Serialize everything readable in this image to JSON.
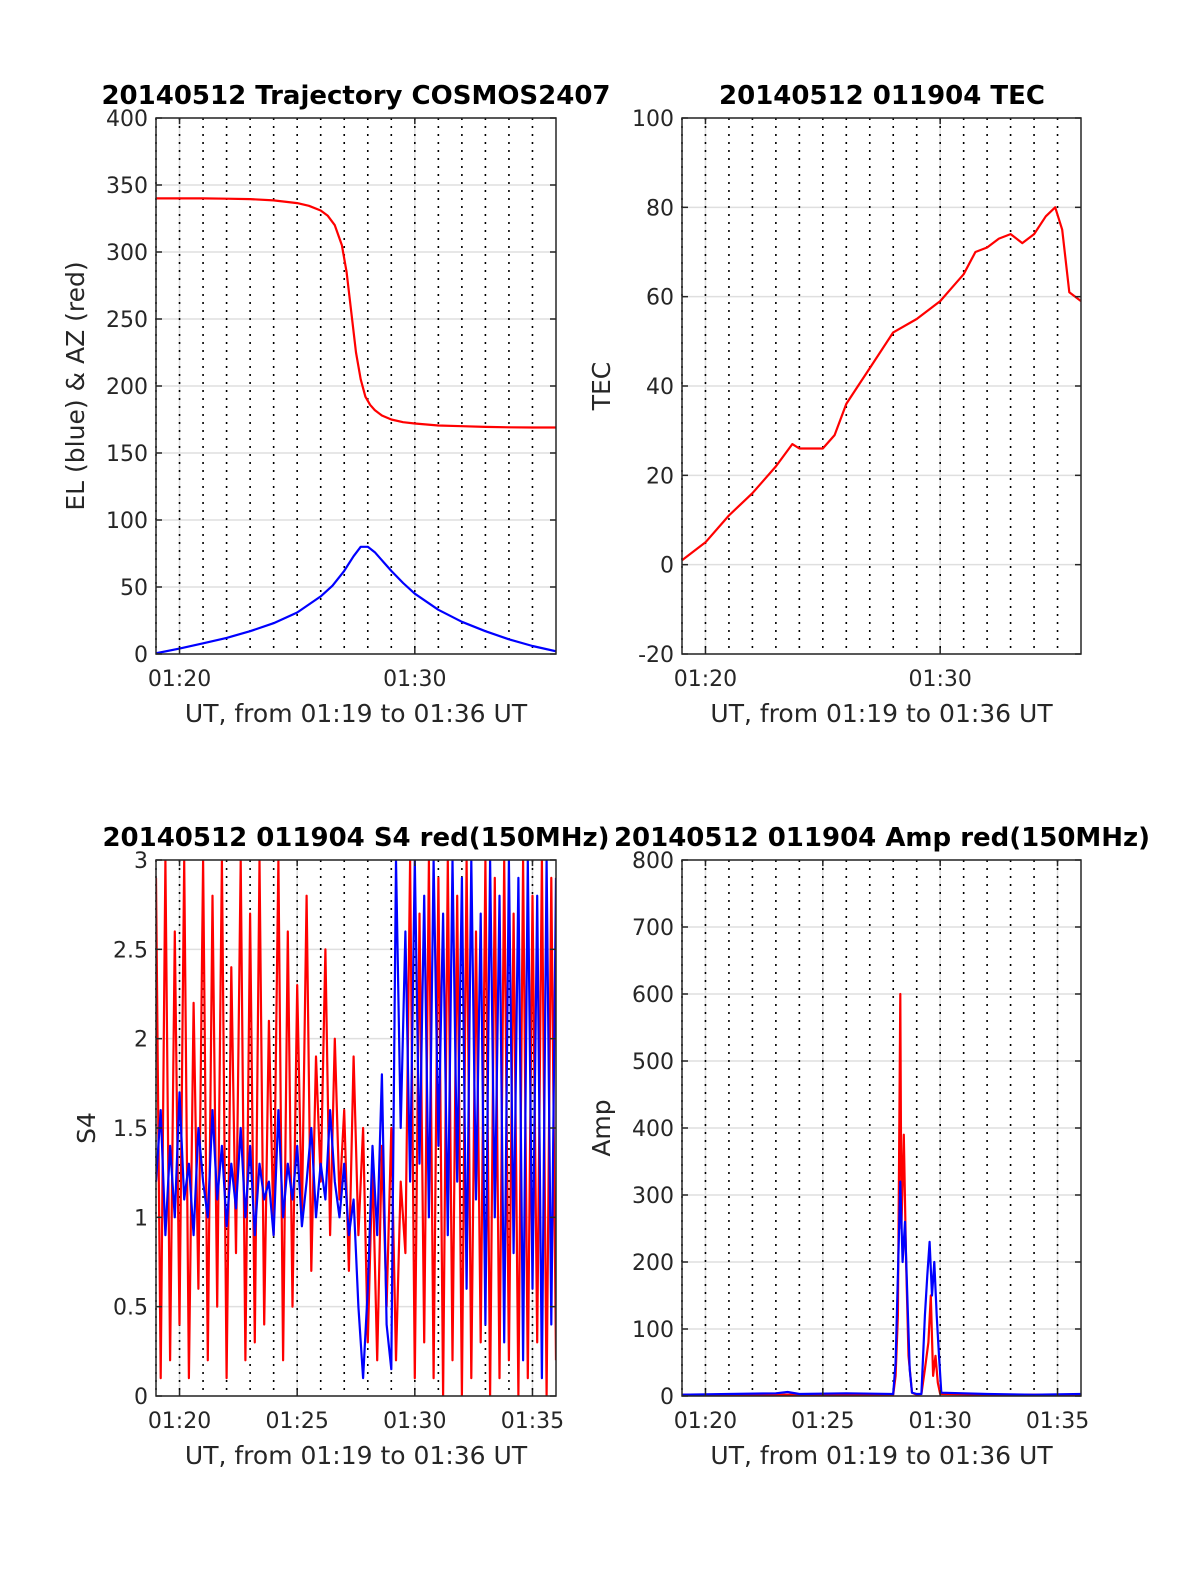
{
  "chart_data": [
    {
      "type": "line",
      "title": "20140512 Trajectory COSMOS2407",
      "xlabel": "UT, from 01:19 to 01:36 UT",
      "ylabel": "EL (blue) & AZ (red)",
      "xlim": [
        79.0,
        96.0
      ],
      "ylim": [
        0,
        400
      ],
      "yticks": [
        0,
        50,
        100,
        150,
        200,
        250,
        300,
        350,
        400
      ],
      "xticks": [
        {
          "v": 80,
          "label": "01:20"
        },
        {
          "v": 90,
          "label": "01:30"
        }
      ],
      "grid": "on",
      "series": [
        {
          "color": "#ff0000",
          "x": [
            79.0,
            80.0,
            81.0,
            82.0,
            83.0,
            84.0,
            85.0,
            85.5,
            86.0,
            86.3,
            86.6,
            86.9,
            87.1,
            87.3,
            87.5,
            87.7,
            87.9,
            88.1,
            88.3,
            88.6,
            89.0,
            89.5,
            90.0,
            91.0,
            92.0,
            93.0,
            94.0,
            95.0,
            96.0
          ],
          "y": [
            340,
            340,
            340,
            339.8,
            339.5,
            338.5,
            336.5,
            334.5,
            331,
            327,
            320,
            305,
            285,
            255,
            225,
            205,
            192,
            186,
            182,
            178,
            175,
            173,
            172,
            170.5,
            170,
            169.5,
            169.2,
            169,
            169
          ]
        },
        {
          "color": "#0000ff",
          "x": [
            79.0,
            80.0,
            81.0,
            82.0,
            83.0,
            84.0,
            85.0,
            86.0,
            86.5,
            87.0,
            87.4,
            87.7,
            88.0,
            88.3,
            88.7,
            89.0,
            89.5,
            90.0,
            91.0,
            92.0,
            93.0,
            94.0,
            95.0,
            96.0
          ],
          "y": [
            0.5,
            4,
            8,
            12,
            17,
            23,
            31,
            43,
            51,
            62,
            73,
            80,
            80,
            76,
            68,
            62,
            53,
            45,
            33,
            24,
            17,
            11,
            6,
            2
          ]
        }
      ]
    },
    {
      "type": "line",
      "title": "20140512 011904 TEC",
      "xlabel": "UT, from 01:19 to 01:36 UT",
      "ylabel": "TEC",
      "xlim": [
        79.0,
        96.0
      ],
      "ylim": [
        -20,
        100
      ],
      "yticks": [
        -20,
        0,
        20,
        40,
        60,
        80,
        100
      ],
      "xticks": [
        {
          "v": 80,
          "label": "01:20"
        },
        {
          "v": 90,
          "label": "01:30"
        }
      ],
      "grid": "on",
      "series": [
        {
          "color": "#ff0000",
          "x": [
            79.0,
            80.0,
            81.0,
            82.0,
            83.0,
            83.7,
            84.0,
            85.0,
            85.5,
            86.0,
            86.5,
            87.0,
            88.0,
            89.0,
            90.0,
            90.5,
            91.0,
            91.5,
            92.0,
            92.5,
            93.0,
            93.5,
            94.0,
            94.5,
            94.9,
            95.2,
            95.5,
            96.0
          ],
          "y": [
            1,
            5,
            11,
            16,
            22,
            27,
            26,
            26,
            29,
            36,
            40,
            44,
            52,
            55,
            59,
            62,
            65,
            70,
            71,
            73,
            74,
            72,
            74,
            78,
            80,
            75,
            61,
            59
          ]
        }
      ]
    },
    {
      "type": "line",
      "title": "20140512 011904 S4 red(150MHz)",
      "xlabel": "UT, from 01:19 to 01:36 UT",
      "ylabel": "S4",
      "xlim": [
        79.0,
        96.0
      ],
      "ylim": [
        0,
        3
      ],
      "yticks": [
        0,
        0.5,
        1,
        1.5,
        2,
        2.5,
        3
      ],
      "xticks": [
        {
          "v": 80,
          "label": "01:20"
        },
        {
          "v": 85,
          "label": "01:25"
        },
        {
          "v": 90,
          "label": "01:30"
        },
        {
          "v": 95,
          "label": "01:35"
        }
      ],
      "grid": "on",
      "series": [
        {
          "color": "#ff0000",
          "x": [
            79.0,
            79.2,
            79.4,
            79.6,
            79.8,
            80.0,
            80.2,
            80.4,
            80.6,
            80.8,
            81.0,
            81.2,
            81.4,
            81.6,
            81.8,
            82.0,
            82.2,
            82.4,
            82.6,
            82.8,
            83.0,
            83.2,
            83.4,
            83.6,
            83.8,
            84.0,
            84.2,
            84.4,
            84.6,
            84.8,
            85.0,
            85.2,
            85.4,
            85.6,
            85.8,
            86.0,
            86.2,
            86.4,
            86.6,
            86.8,
            87.0,
            87.2,
            87.4,
            87.6,
            87.8,
            88.0,
            88.2,
            88.4,
            88.6,
            88.8,
            89.0,
            89.2,
            89.4,
            89.6,
            89.8,
            90.0,
            90.2,
            90.4,
            90.6,
            90.8,
            91.0,
            91.2,
            91.4,
            91.6,
            91.8,
            92.0,
            92.2,
            92.4,
            92.6,
            92.8,
            93.0,
            93.2,
            93.4,
            93.6,
            93.8,
            94.0,
            94.2,
            94.4,
            94.6,
            94.8,
            95.0,
            95.2,
            95.4,
            95.6,
            95.8,
            96.0
          ],
          "y": [
            2.9,
            0.1,
            3,
            0.2,
            2.6,
            0.4,
            3,
            0.1,
            2.2,
            0.6,
            3,
            0.2,
            2.8,
            0.5,
            3,
            0.1,
            2.4,
            0.8,
            3,
            0.2,
            2.7,
            0.3,
            3,
            0.4,
            2.1,
            0.9,
            3,
            0.2,
            2.6,
            0.5,
            2.3,
            1.0,
            2.8,
            0.7,
            1.9,
            1.2,
            2.5,
            0.9,
            2.0,
            1.1,
            1.6,
            0.7,
            1.9,
            0.9,
            1.5,
            0.3,
            1.3,
            0.2,
            1.4,
            0.5,
            1.5,
            0.2,
            1.2,
            0.8,
            3,
            0.1,
            2.7,
            0.3,
            3,
            0.1,
            2.9,
            0,
            3,
            0.2,
            2.8,
            0,
            3,
            0.1,
            2.6,
            0.3,
            3,
            0,
            2.9,
            0.1,
            3,
            0.2,
            2.7,
            0,
            3,
            0.1,
            2.8,
            0.3,
            3,
            0,
            2.9,
            0.2
          ]
        },
        {
          "color": "#0000ff",
          "x": [
            79.0,
            79.2,
            79.4,
            79.6,
            79.8,
            80.0,
            80.2,
            80.4,
            80.6,
            80.8,
            81.0,
            81.2,
            81.4,
            81.6,
            81.8,
            82.0,
            82.2,
            82.4,
            82.6,
            82.8,
            83.0,
            83.2,
            83.4,
            83.6,
            83.8,
            84.0,
            84.2,
            84.4,
            84.6,
            84.8,
            85.0,
            85.2,
            85.4,
            85.6,
            85.8,
            86.0,
            86.2,
            86.4,
            86.6,
            86.8,
            87.0,
            87.2,
            87.4,
            87.6,
            87.8,
            88.0,
            88.2,
            88.4,
            88.6,
            88.8,
            89.0,
            89.2,
            89.4,
            89.6,
            89.8,
            90.0,
            90.2,
            90.4,
            90.6,
            90.8,
            91.0,
            91.2,
            91.4,
            91.6,
            91.8,
            92.0,
            92.2,
            92.4,
            92.6,
            92.8,
            93.0,
            93.2,
            93.4,
            93.6,
            93.8,
            94.0,
            94.2,
            94.4,
            94.6,
            94.8,
            95.0,
            95.2,
            95.4,
            95.6,
            95.8,
            96.0
          ],
          "y": [
            1.2,
            1.6,
            0.9,
            1.4,
            1.0,
            1.7,
            1.1,
            1.3,
            0.9,
            1.5,
            1.2,
            1.0,
            1.6,
            1.1,
            1.4,
            0.95,
            1.3,
            1.05,
            1.5,
            1.0,
            1.4,
            0.9,
            1.3,
            1.1,
            1.2,
            0.9,
            1.6,
            1.0,
            1.3,
            1.1,
            1.4,
            0.95,
            1.2,
            1.5,
            1.0,
            1.3,
            1.1,
            1.6,
            1.2,
            1.0,
            1.3,
            0.9,
            1.1,
            0.5,
            0.1,
            0.6,
            1.4,
            0.9,
            1.8,
            0.4,
            0.15,
            3,
            1.5,
            2.6,
            1.2,
            3,
            1.3,
            2.8,
            1.0,
            3,
            1.4,
            2.7,
            0.9,
            3,
            1.2,
            2.9,
            0.6,
            3,
            1.1,
            2.7,
            0.4,
            3,
            1.0,
            2.8,
            0.3,
            3,
            0.8,
            2.9,
            0.2,
            3,
            0.6,
            2.8,
            0.1,
            3,
            0.4,
            2.9
          ]
        }
      ]
    },
    {
      "type": "line",
      "title": "20140512 011904 Amp red(150MHz)",
      "xlabel": "UT, from 01:19 to 01:36 UT",
      "ylabel": "Amp",
      "xlim": [
        79.0,
        96.0
      ],
      "ylim": [
        0,
        800
      ],
      "yticks": [
        0,
        100,
        200,
        300,
        400,
        500,
        600,
        700,
        800
      ],
      "xticks": [
        {
          "v": 80,
          "label": "01:20"
        },
        {
          "v": 85,
          "label": "01:25"
        },
        {
          "v": 90,
          "label": "01:30"
        },
        {
          "v": 95,
          "label": "01:35"
        }
      ],
      "grid": "on",
      "series": [
        {
          "color": "#ff0000",
          "x": [
            79.0,
            84.0,
            88.0,
            88.1,
            88.2,
            88.3,
            88.35,
            88.45,
            88.55,
            88.65,
            88.8,
            89.0,
            89.2,
            89.35,
            89.5,
            89.6,
            89.7,
            89.8,
            89.9,
            90.0,
            92.0,
            96.0
          ],
          "y": [
            2,
            2,
            2,
            30,
            120,
            600,
            250,
            390,
            200,
            60,
            5,
            2,
            3,
            40,
            80,
            150,
            30,
            60,
            20,
            3,
            2,
            2
          ]
        },
        {
          "color": "#0000ff",
          "x": [
            79.0,
            81.0,
            83.0,
            83.5,
            84.0,
            86.0,
            88.0,
            88.1,
            88.2,
            88.3,
            88.4,
            88.5,
            88.6,
            88.7,
            88.8,
            89.0,
            89.2,
            89.35,
            89.45,
            89.55,
            89.65,
            89.75,
            89.85,
            89.95,
            90.05,
            92.0,
            94.0,
            96.0
          ],
          "y": [
            2,
            3,
            4,
            6,
            3,
            4,
            3,
            50,
            180,
            320,
            200,
            260,
            150,
            40,
            5,
            3,
            3,
            120,
            180,
            230,
            150,
            200,
            120,
            60,
            5,
            3,
            2,
            3
          ]
        }
      ]
    }
  ]
}
